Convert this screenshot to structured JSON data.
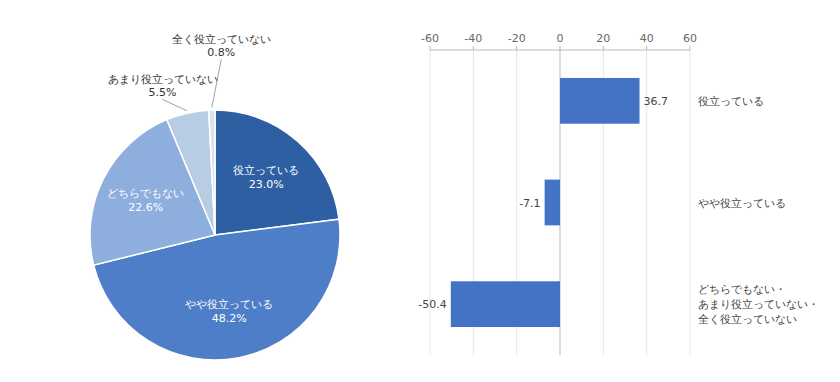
{
  "chart_data": [
    {
      "type": "pie",
      "categories": [
        "役立っている",
        "やや役立っている",
        "どちらでもない",
        "あまり役立っていない",
        "全く役立っていない"
      ],
      "values": [
        23.0,
        48.2,
        22.6,
        5.5,
        0.8
      ],
      "value_labels": [
        "23.0%",
        "48.2%",
        "22.6%",
        "5.5%",
        "0.8%"
      ],
      "colors": [
        "#2e5fa3",
        "#4e7ec8",
        "#8eaede",
        "#b8cce4",
        "#d6e4f0"
      ],
      "data_labels": true
    },
    {
      "type": "bar",
      "orientation": "horizontal",
      "categories": [
        "役立っている",
        "やや役立っている",
        "どちらでもない・\nあまり役立っていない・\n全く役立っていない"
      ],
      "values": [
        36.7,
        -7.1,
        -50.4
      ],
      "color": "#4472c4",
      "xlim": [
        -60,
        60
      ],
      "xticks": [
        -60,
        -40,
        -20,
        0,
        20,
        40,
        60
      ],
      "grid": true,
      "tick_labels": "x",
      "data_labels": true
    }
  ]
}
